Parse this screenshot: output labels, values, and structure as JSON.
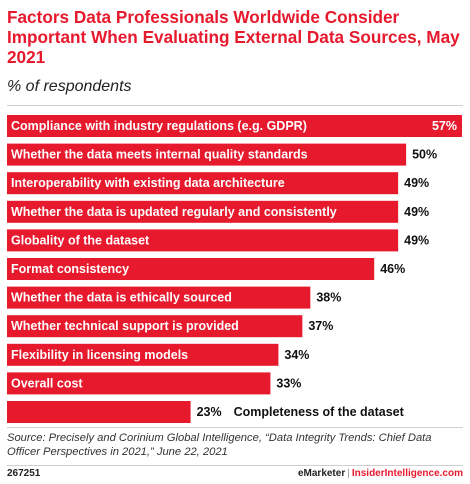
{
  "chart_data": {
    "type": "bar",
    "orientation": "horizontal",
    "title": "Factors Data Professionals Worldwide Consider Important When Evaluating External Data Sources, May 2021",
    "subtitle": "% of respondents",
    "categories": [
      "Compliance with industry regulations (e.g. GDPR)",
      "Whether the data meets internal quality standards",
      "Interoperability with existing data architecture",
      "Whether the data is updated regularly and consistently",
      "Globality of the dataset",
      "Format consistency",
      "Whether the data is ethically sourced",
      "Whether technical support is provided",
      "Flexibility in licensing models",
      "Overall cost",
      "Completeness of the dataset"
    ],
    "values": [
      57,
      50,
      49,
      49,
      49,
      46,
      38,
      37,
      34,
      33,
      23
    ],
    "value_labels": [
      "57%",
      "50%",
      "49%",
      "49%",
      "49%",
      "46%",
      "38%",
      "37%",
      "34%",
      "33%",
      "23%"
    ],
    "xlim": [
      0,
      57
    ],
    "bar_color": "#e6192d",
    "grid": false,
    "legend": "none"
  },
  "source": "Source: Precisely and Corinium Global Intelligence, “Data Integrity Trends: Chief Data Officer Perspectives in 2021,” June 22, 2021",
  "footer": {
    "chart_id": "267251",
    "brand_left": "eMarketer",
    "separator": "|",
    "brand_right": "InsiderIntelligence.com"
  }
}
